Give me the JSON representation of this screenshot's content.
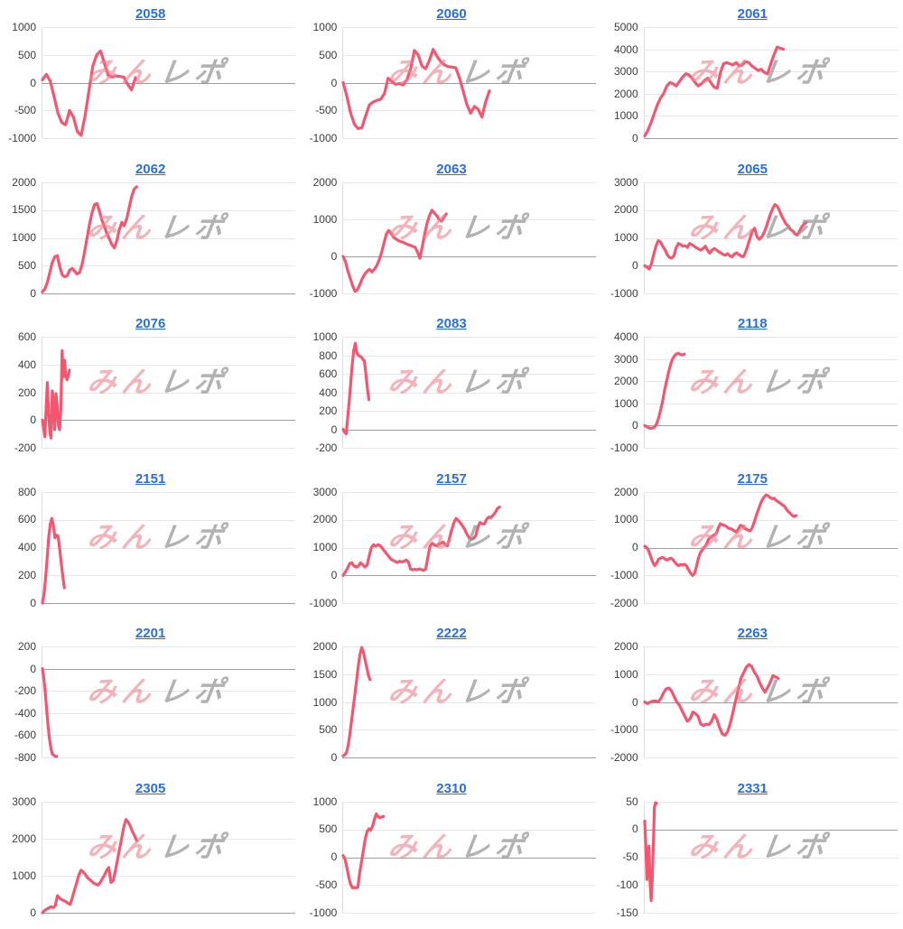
{
  "page": {
    "background": "#ffffff"
  },
  "colors": {
    "line": "#f4566f",
    "link": "#2a6edf",
    "grid_line": "#e7e7e7",
    "zero_line": "#9e9e9e",
    "axis_line": "#dddddd",
    "tick_label": "#3c3c3c",
    "watermark_pink": "rgba(238,130,144,0.62)",
    "watermark_gray": "rgba(148,148,148,0.72)"
  },
  "watermark": {
    "pink_text": "みん",
    "gray_text": "レポ"
  },
  "chart_data": [
    {
      "type": "line",
      "title": "2058",
      "ylim": [
        -1000,
        1000
      ],
      "ticks": [
        -1000,
        -500,
        0,
        500,
        1000
      ],
      "x_end": 0.37,
      "values": [
        50,
        150,
        30,
        -250,
        -550,
        -720,
        -760,
        -500,
        -620,
        -880,
        -950,
        -600,
        -150,
        300,
        500,
        570,
        350,
        130,
        100,
        120,
        110,
        100,
        -30,
        -130,
        90
      ]
    },
    {
      "type": "line",
      "title": "2060",
      "ylim": [
        -1000,
        1000
      ],
      "ticks": [
        -1000,
        -500,
        0,
        500,
        1000
      ],
      "x_end": 0.58,
      "values": [
        0,
        -250,
        -550,
        -750,
        -830,
        -810,
        -600,
        -400,
        -350,
        -320,
        -300,
        -200,
        80,
        20,
        -30,
        -20,
        -40,
        50,
        250,
        580,
        500,
        300,
        250,
        400,
        600,
        480,
        380,
        320,
        290,
        280,
        270,
        90,
        -150,
        -400,
        -550,
        -430,
        -480,
        -620,
        -350,
        -150
      ]
    },
    {
      "type": "line",
      "title": "2061",
      "ylim": [
        0,
        5000
      ],
      "ticks": [
        0,
        1000,
        2000,
        3000,
        4000,
        5000
      ],
      "x_end": 0.55,
      "values": [
        100,
        350,
        700,
        1100,
        1500,
        1800,
        2000,
        2350,
        2500,
        2450,
        2350,
        2550,
        2750,
        2900,
        2850,
        2700,
        2500,
        2350,
        2450,
        2600,
        2700,
        2500,
        2300,
        2250,
        2950,
        3350,
        3400,
        3350,
        3300,
        3400,
        3250,
        3300,
        3450,
        3400,
        3250,
        3150,
        3050,
        3100,
        2950,
        2900,
        3350,
        3750,
        4100,
        4050,
        4000
      ]
    },
    {
      "type": "line",
      "title": "2062",
      "ylim": [
        0,
        2000
      ],
      "ticks": [
        0,
        500,
        1000,
        1500,
        2000
      ],
      "x_end": 0.375,
      "values": [
        30,
        80,
        200,
        380,
        560,
        660,
        680,
        480,
        330,
        300,
        320,
        420,
        450,
        400,
        350,
        380,
        520,
        750,
        1000,
        1250,
        1450,
        1600,
        1620,
        1480,
        1320,
        1200,
        1080,
        980,
        880,
        820,
        950,
        1150,
        1280,
        1220,
        1350,
        1550,
        1750,
        1880,
        1920
      ]
    },
    {
      "type": "line",
      "title": "2063",
      "ylim": [
        -1000,
        2000
      ],
      "ticks": [
        -1000,
        0,
        1000,
        2000
      ],
      "x_end": 0.41,
      "values": [
        0,
        -150,
        -400,
        -600,
        -800,
        -950,
        -900,
        -750,
        -600,
        -480,
        -400,
        -350,
        -420,
        -350,
        -250,
        -100,
        100,
        350,
        600,
        700,
        620,
        520,
        470,
        430,
        400,
        380,
        350,
        320,
        300,
        270,
        250,
        120,
        -50,
        250,
        600,
        900,
        1100,
        1250,
        1180,
        1100,
        1000,
        950,
        1050,
        1150
      ]
    },
    {
      "type": "line",
      "title": "2065",
      "ylim": [
        -1000,
        3000
      ],
      "ticks": [
        -1000,
        0,
        1000,
        2000,
        3000
      ],
      "x_end": 0.64,
      "values": [
        0,
        -60,
        -120,
        80,
        400,
        700,
        900,
        860,
        700,
        580,
        400,
        300,
        270,
        350,
        650,
        800,
        760,
        700,
        720,
        660,
        800,
        760,
        700,
        650,
        600,
        560,
        620,
        700,
        550,
        450,
        560,
        620,
        560,
        500,
        460,
        400,
        380,
        430,
        350,
        320,
        420,
        460,
        400,
        350,
        320,
        500,
        750,
        1000,
        1250,
        1350,
        1050,
        950,
        1020,
        1150,
        1350,
        1600,
        1850,
        2050,
        2200,
        2150,
        2000,
        1800,
        1650,
        1500,
        1420,
        1300,
        1250,
        1150,
        1100,
        1250,
        1400,
        1500,
        1550
      ]
    },
    {
      "type": "line",
      "title": "2076",
      "ylim": [
        -200,
        600
      ],
      "ticks": [
        -200,
        0,
        200,
        400,
        600
      ],
      "x_end": 0.11,
      "values": [
        0,
        -60,
        -120,
        80,
        270,
        60,
        -90,
        -130,
        210,
        140,
        -70,
        190,
        110,
        -40,
        -70,
        80,
        500,
        310,
        430,
        330,
        290,
        320,
        360
      ]
    },
    {
      "type": "line",
      "title": "2083",
      "ylim": [
        -200,
        1000
      ],
      "ticks": [
        -200,
        0,
        200,
        400,
        600,
        800,
        1000
      ],
      "x_end": 0.105,
      "values": [
        0,
        -30,
        -50,
        120,
        300,
        500,
        700,
        850,
        930,
        830,
        800,
        790,
        780,
        760,
        740,
        600,
        450,
        320
      ]
    },
    {
      "type": "line",
      "title": "2118",
      "ylim": [
        -1000,
        4000
      ],
      "ticks": [
        -1000,
        0,
        1000,
        2000,
        3000,
        4000
      ],
      "x_end": 0.16,
      "values": [
        0,
        -50,
        -100,
        -120,
        -110,
        -60,
        80,
        350,
        700,
        1100,
        1600,
        2000,
        2400,
        2750,
        3000,
        3150,
        3230,
        3250,
        3200,
        3180,
        3220
      ]
    },
    {
      "type": "line",
      "title": "2151",
      "ylim": [
        0,
        800
      ],
      "ticks": [
        0,
        200,
        400,
        600,
        800
      ],
      "x_end": 0.09,
      "values": [
        0,
        60,
        180,
        320,
        470,
        570,
        610,
        560,
        470,
        490,
        480,
        390,
        290,
        190,
        110
      ]
    },
    {
      "type": "line",
      "title": "2157",
      "ylim": [
        -1000,
        3000
      ],
      "ticks": [
        -1000,
        0,
        1000,
        2000,
        3000
      ],
      "x_end": 0.62,
      "values": [
        0,
        120,
        250,
        420,
        450,
        340,
        300,
        330,
        450,
        380,
        300,
        360,
        700,
        1000,
        1100,
        1050,
        1100,
        1070,
        980,
        880,
        780,
        680,
        580,
        540,
        500,
        460,
        510,
        480,
        510,
        550,
        490,
        230,
        200,
        220,
        200,
        230,
        210,
        180,
        220,
        650,
        1050,
        1150,
        1100,
        1060,
        1120,
        1160,
        1200,
        1100,
        1060,
        1350,
        1650,
        1900,
        2050,
        1980,
        1880,
        1780,
        1650,
        1480,
        1350,
        1300,
        1330,
        1420,
        1720,
        1900,
        1860,
        1850,
        2010,
        2100,
        2080,
        2160,
        2260,
        2400,
        2460
      ]
    },
    {
      "type": "line",
      "title": "2175",
      "ylim": [
        -2000,
        2000
      ],
      "ticks": [
        -2000,
        -1000,
        0,
        1000,
        2000
      ],
      "x_end": 0.6,
      "values": [
        50,
        0,
        -120,
        -320,
        -520,
        -650,
        -560,
        -420,
        -380,
        -350,
        -400,
        -450,
        -420,
        -380,
        -420,
        -520,
        -600,
        -650,
        -610,
        -630,
        -600,
        -660,
        -800,
        -920,
        -1000,
        -940,
        -680,
        -380,
        -180,
        -80,
        20,
        120,
        300,
        360,
        420,
        460,
        520,
        720,
        860,
        820,
        800,
        760,
        700,
        680,
        650,
        600,
        560,
        660,
        800,
        780,
        700,
        660,
        620,
        600,
        720,
        920,
        1150,
        1350,
        1550,
        1720,
        1820,
        1900,
        1860,
        1800,
        1760,
        1780,
        1700,
        1650,
        1600,
        1540,
        1500,
        1400,
        1300,
        1240,
        1160,
        1120,
        1150
      ]
    },
    {
      "type": "line",
      "title": "2201",
      "ylim": [
        -800,
        200
      ],
      "ticks": [
        -800,
        -600,
        -400,
        -200,
        0,
        200
      ],
      "x_end": 0.06,
      "values": [
        0,
        -90,
        -220,
        -380,
        -520,
        -640,
        -720,
        -770,
        -780,
        -790,
        -790
      ]
    },
    {
      "type": "line",
      "title": "2222",
      "ylim": [
        0,
        2000
      ],
      "ticks": [
        0,
        500,
        1000,
        1500,
        2000
      ],
      "x_end": 0.11,
      "values": [
        30,
        50,
        90,
        220,
        420,
        660,
        900,
        1150,
        1400,
        1650,
        1860,
        1980,
        1900,
        1760,
        1620,
        1480,
        1400
      ]
    },
    {
      "type": "line",
      "title": "2263",
      "ylim": [
        -2000,
        2000
      ],
      "ticks": [
        -2000,
        -1000,
        0,
        1000,
        2000
      ],
      "x_end": 0.53,
      "values": [
        0,
        -60,
        -10,
        30,
        40,
        0,
        120,
        320,
        470,
        500,
        400,
        200,
        0,
        -120,
        -320,
        -520,
        -700,
        -600,
        -360,
        -420,
        -520,
        -800,
        -850,
        -800,
        -820,
        -700,
        -460,
        -620,
        -920,
        -1150,
        -1200,
        -1080,
        -780,
        -380,
        50,
        450,
        850,
        1050,
        1250,
        1350,
        1280,
        1080,
        930,
        700,
        500,
        350,
        520,
        720,
        950,
        900,
        850
      ]
    },
    {
      "type": "line",
      "title": "2305",
      "ylim": [
        0,
        3000
      ],
      "ticks": [
        0,
        1000,
        2000,
        3000
      ],
      "x_end": 0.375,
      "values": [
        0,
        60,
        100,
        130,
        160,
        140,
        190,
        460,
        400,
        350,
        330,
        300,
        250,
        230,
        420,
        620,
        820,
        1020,
        1150,
        1100,
        1040,
        950,
        900,
        850,
        800,
        770,
        750,
        820,
        920,
        1020,
        1150,
        1220,
        820,
        860,
        1120,
        1420,
        1720,
        2020,
        2320,
        2520,
        2450,
        2340,
        2200,
        2080,
        1950
      ]
    },
    {
      "type": "line",
      "title": "2310",
      "ylim": [
        -1000,
        1000
      ],
      "ticks": [
        -1000,
        -500,
        0,
        500,
        1000
      ],
      "x_end": 0.163,
      "values": [
        30,
        -30,
        -180,
        -350,
        -480,
        -550,
        -545,
        -552,
        -540,
        -280,
        -80,
        120,
        320,
        460,
        510,
        490,
        560,
        680,
        780,
        730,
        710,
        725,
        735
      ]
    },
    {
      "type": "line",
      "title": "2331",
      "ylim": [
        -150,
        50
      ],
      "ticks": [
        -150,
        -100,
        -50,
        0,
        50
      ],
      "x_end": 0.05,
      "values": [
        15,
        -30,
        -90,
        -45,
        -30,
        -95,
        -128,
        -90,
        -30,
        40,
        48,
        47
      ]
    }
  ]
}
